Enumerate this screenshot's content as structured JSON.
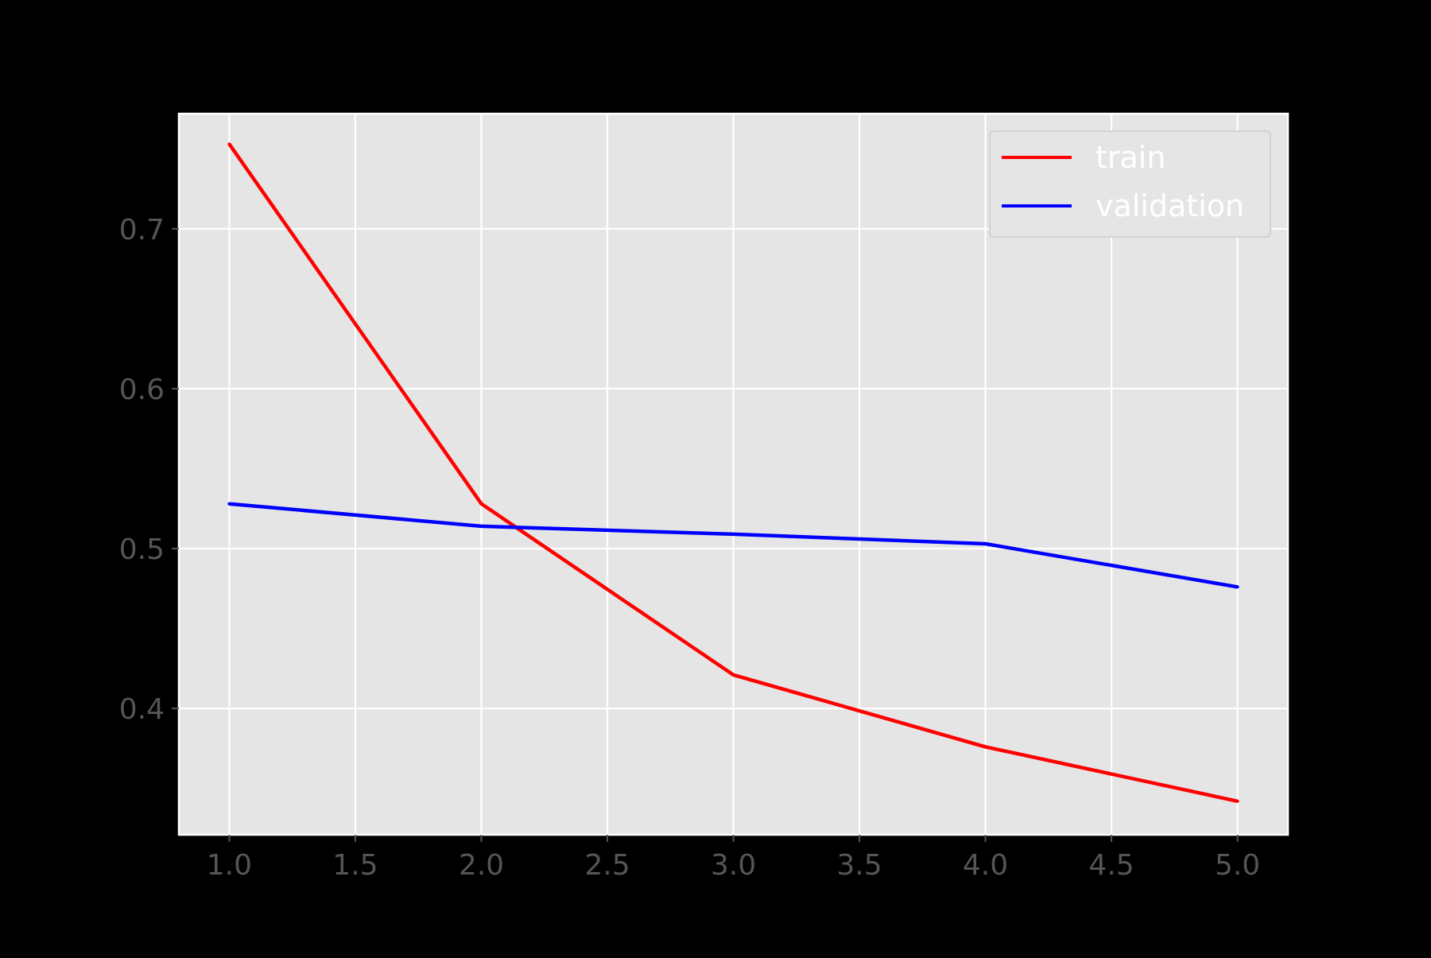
{
  "chart_data": {
    "type": "line",
    "title": "",
    "xlabel": "",
    "ylabel": "",
    "x": [
      1.0,
      2.0,
      3.0,
      4.0,
      5.0
    ],
    "series": [
      {
        "name": "train",
        "color": "#ff0000",
        "values": [
          0.753,
          0.528,
          0.421,
          0.376,
          0.342
        ]
      },
      {
        "name": "validation",
        "color": "#0000ff",
        "values": [
          0.528,
          0.514,
          0.509,
          0.503,
          0.476
        ]
      }
    ],
    "xlim": [
      0.8,
      5.2
    ],
    "ylim": [
      0.321,
      0.772
    ],
    "xticks": [
      1.0,
      1.5,
      2.0,
      2.5,
      3.0,
      3.5,
      4.0,
      4.5,
      5.0
    ],
    "xtick_labels": [
      "1.0",
      "1.5",
      "2.0",
      "2.5",
      "3.0",
      "3.5",
      "4.0",
      "4.5",
      "5.0"
    ],
    "yticks": [
      0.4,
      0.5,
      0.6,
      0.7
    ],
    "ytick_labels": [
      "0.4",
      "0.5",
      "0.6",
      "0.7"
    ],
    "grid": true,
    "legend_position": "top-right",
    "colors": {
      "figure_background": "#000000",
      "axes_background": "#e5e5e5",
      "grid": "#ffffff",
      "tick_label": "#555555",
      "legend_text": "#ffffff"
    }
  }
}
